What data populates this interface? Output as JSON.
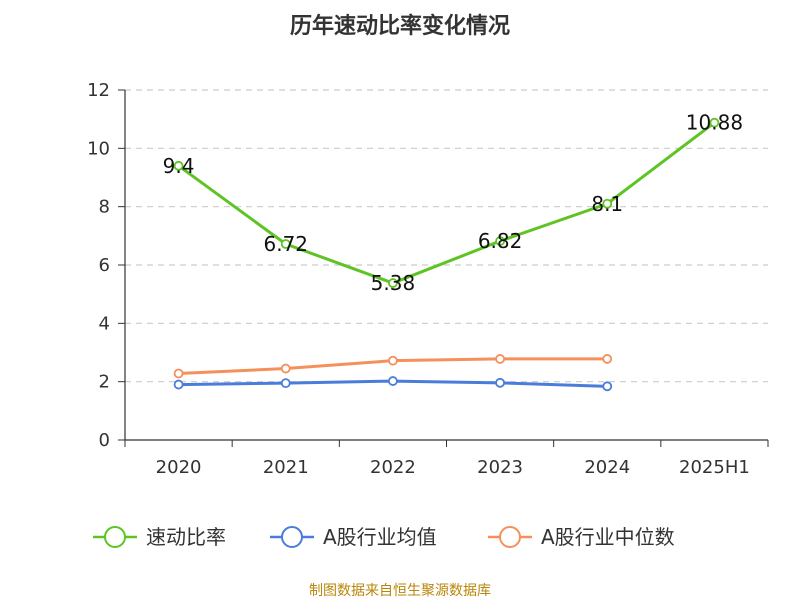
{
  "chart_data": {
    "type": "line",
    "title": "历年速动比率变化情况",
    "categories": [
      "2020",
      "2021",
      "2022",
      "2023",
      "2024",
      "2025H1"
    ],
    "ylim": [
      0,
      12
    ],
    "yticks": [
      0,
      2,
      4,
      6,
      8,
      10,
      12
    ],
    "grid": true,
    "legend_position": "bottom",
    "series": [
      {
        "name": "速动比率",
        "color": "#5ec423",
        "values": [
          9.4,
          6.72,
          5.38,
          6.82,
          8.1,
          10.88
        ],
        "labels": [
          "9.4",
          "6.72",
          "5.38",
          "6.82",
          "8.1",
          "10.88"
        ],
        "show_labels": true
      },
      {
        "name": "A股行业均值",
        "color": "#4a7ddb",
        "values": [
          1.9,
          1.95,
          2.02,
          1.96,
          1.84,
          null
        ],
        "show_labels": false
      },
      {
        "name": "A股行业中位数",
        "color": "#f5905a",
        "values": [
          2.28,
          2.45,
          2.72,
          2.78,
          2.78,
          null
        ],
        "show_labels": false
      }
    ],
    "source": "制图数据来自恒生聚源数据库"
  }
}
